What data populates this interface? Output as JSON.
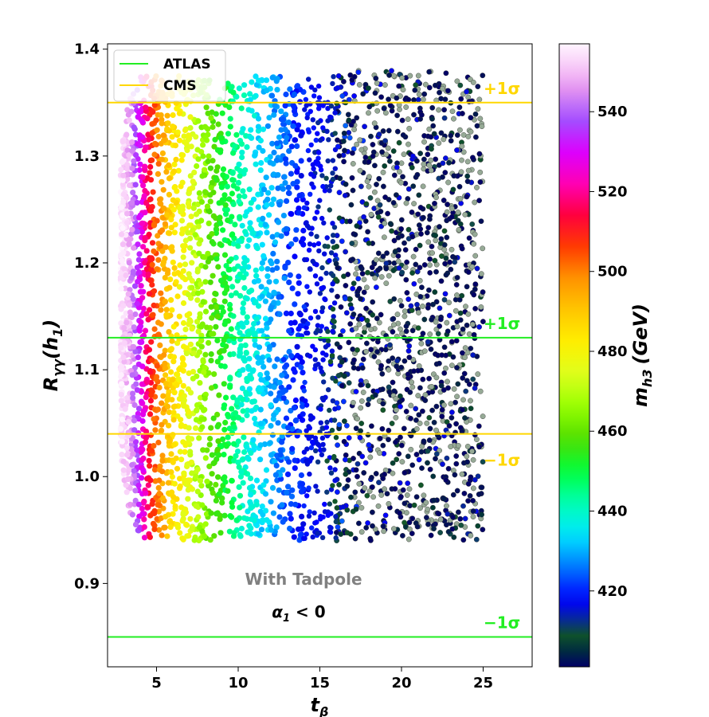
{
  "chart_data": {
    "type": "scatter",
    "xlabel_base": "t",
    "xlabel_sub": "β",
    "ylabel_base": "R",
    "ylabel_sub": "γγ",
    "ylabel_arg": "(h",
    "ylabel_arg_sub": "1",
    "ylabel_arg_close": ")",
    "xlim": [
      2,
      28
    ],
    "ylim": [
      0.822,
      1.405
    ],
    "xticks": [
      5,
      10,
      15,
      20,
      25
    ],
    "yticks": [
      0.9,
      1.0,
      1.1,
      1.2,
      1.3,
      1.4
    ],
    "xtick_labels": [
      "5",
      "10",
      "15",
      "20",
      "25"
    ],
    "ytick_labels": [
      "0.9",
      "1.0",
      "1.1",
      "1.2",
      "1.3",
      "1.4"
    ],
    "grid": false,
    "colorbar": {
      "label_base": "m",
      "label_sub": "h3",
      "label_unit": "(GeV)",
      "range": [
        401,
        557
      ],
      "ticks": [
        420,
        440,
        460,
        480,
        500,
        520,
        540
      ],
      "tick_labels": [
        "420",
        "440",
        "460",
        "480",
        "500",
        "520",
        "540"
      ],
      "colormap": "gist_ncar_r"
    },
    "legend": {
      "placement": "top-left",
      "entries": [
        {
          "name": "ATLAS",
          "color": "#22ee22"
        },
        {
          "name": "CMS",
          "color": "#ffd700"
        }
      ]
    },
    "hlines": [
      {
        "y": 1.35,
        "color": "#ffd700",
        "label": "+1σ",
        "group": "CMS"
      },
      {
        "y": 1.04,
        "color": "#ffd700",
        "label": "−1σ",
        "group": "CMS"
      },
      {
        "y": 1.13,
        "color": "#22ee22",
        "label": "+1σ",
        "group": "ATLAS"
      },
      {
        "y": 0.85,
        "color": "#22ee22",
        "label": "−1σ",
        "group": "ATLAS"
      }
    ],
    "annotations": [
      {
        "text": "With Tadpole",
        "x": 11.2,
        "y": 0.905,
        "color": "#808080"
      },
      {
        "text": "α",
        "sub": "1",
        "rest": " < 0",
        "x": 11.2,
        "y": 0.8755,
        "color": "#000000"
      }
    ],
    "scatter_region": {
      "x_range": [
        2.8,
        25
      ],
      "y_range": [
        0.937,
        1.38
      ],
      "color_trend": "m_h3 decreases from ~555 GeV at t_beta≈3 to ~402 GeV at t_beta≈25"
    }
  }
}
